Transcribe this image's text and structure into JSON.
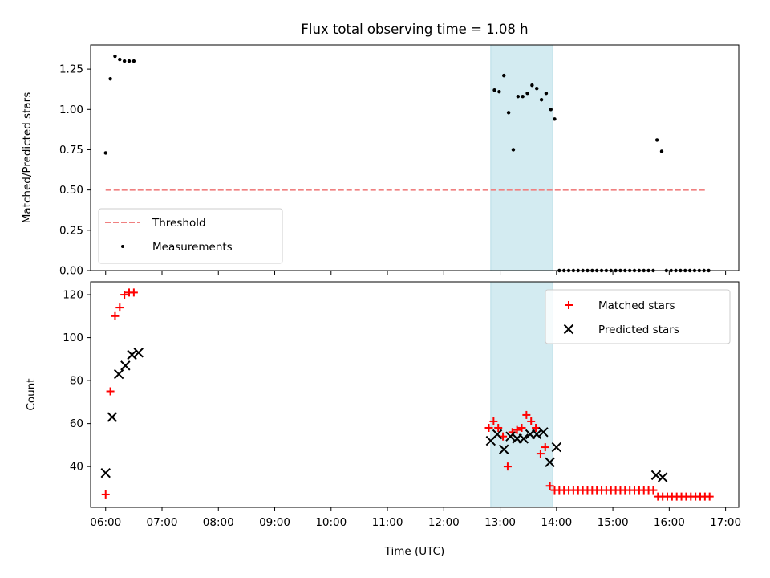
{
  "chart_data": [
    {
      "type": "scatter",
      "title": "Flux total observing time = 1.08 h",
      "ylabel": "Matched/Predicted stars",
      "xlim": [
        "05:44",
        "17:14"
      ],
      "ylim": [
        0,
        1.4
      ],
      "yticks": [
        "0.00",
        "0.25",
        "0.50",
        "0.75",
        "1.00",
        "1.25"
      ],
      "highlight_span": [
        "12:50",
        "13:56"
      ],
      "highlight_color": "#d3ebf1",
      "legend_position": "lower-left",
      "threshold": {
        "name": "Threshold",
        "value": 0.5,
        "x_range": [
          "06:00",
          "16:40"
        ],
        "color": "#f08080"
      },
      "series": [
        {
          "name": "Measurements",
          "color": "#000000",
          "x": [
            "06:00",
            "06:05",
            "06:10",
            "06:15",
            "06:20",
            "06:25",
            "06:30",
            "12:54",
            "12:59",
            "13:04",
            "13:09",
            "13:14",
            "13:19",
            "13:24",
            "13:29",
            "13:34",
            "13:39",
            "13:44",
            "13:49",
            "13:54",
            "13:58",
            "14:03",
            "14:08",
            "14:13",
            "14:18",
            "14:23",
            "14:28",
            "14:33",
            "14:38",
            "14:43",
            "14:48",
            "14:53",
            "14:58",
            "15:03",
            "15:08",
            "15:13",
            "15:18",
            "15:23",
            "15:28",
            "15:33",
            "15:38",
            "15:43",
            "15:47",
            "15:52",
            "15:57",
            "16:02",
            "16:07",
            "16:12",
            "16:17",
            "16:22",
            "16:27",
            "16:32",
            "16:37",
            "16:42"
          ],
          "y": [
            0.73,
            1.19,
            1.33,
            1.31,
            1.3,
            1.3,
            1.3,
            1.12,
            1.11,
            1.21,
            0.98,
            0.75,
            1.08,
            1.08,
            1.1,
            1.15,
            1.13,
            1.06,
            1.1,
            1.0,
            0.94,
            0,
            0,
            0,
            0,
            0,
            0,
            0,
            0,
            0,
            0,
            0,
            0,
            0,
            0,
            0,
            0,
            0,
            0,
            0,
            0,
            0,
            0.81,
            0.74,
            0,
            0,
            0,
            0,
            0,
            0,
            0,
            0,
            0,
            0
          ]
        }
      ]
    },
    {
      "type": "scatter",
      "xlabel": "Time (UTC)",
      "ylabel": "Count",
      "xlim": [
        "05:44",
        "17:14"
      ],
      "ylim": [
        21,
        126
      ],
      "yticks": [
        "40",
        "60",
        "80",
        "100",
        "120"
      ],
      "xticks": [
        "06:00",
        "07:00",
        "08:00",
        "09:00",
        "10:00",
        "11:00",
        "12:00",
        "13:00",
        "14:00",
        "15:00",
        "16:00",
        "17:00"
      ],
      "highlight_span": [
        "12:50",
        "13:56"
      ],
      "highlight_color": "#d3ebf1",
      "legend_position": "top-right",
      "series": [
        {
          "name": "Matched stars",
          "marker": "plus",
          "color": "#ff0000",
          "x": [
            "06:00",
            "06:05",
            "06:10",
            "06:15",
            "06:20",
            "06:25",
            "06:30",
            "12:48",
            "12:53",
            "12:58",
            "13:03",
            "13:08",
            "13:13",
            "13:18",
            "13:23",
            "13:28",
            "13:33",
            "13:38",
            "13:43",
            "13:48",
            "13:53",
            "13:58",
            "14:03",
            "14:08",
            "14:13",
            "14:18",
            "14:23",
            "14:28",
            "14:33",
            "14:38",
            "14:43",
            "14:48",
            "14:53",
            "14:58",
            "15:03",
            "15:08",
            "15:13",
            "15:18",
            "15:23",
            "15:28",
            "15:33",
            "15:38",
            "15:43",
            "15:48",
            "15:53",
            "15:58",
            "16:03",
            "16:08",
            "16:13",
            "16:18",
            "16:23",
            "16:28",
            "16:33",
            "16:38",
            "16:43"
          ],
          "y": [
            27,
            75,
            110,
            114,
            120,
            121,
            121,
            58,
            61,
            58,
            54,
            40,
            56,
            57,
            58,
            64,
            61,
            58,
            46,
            49,
            31,
            29,
            29,
            29,
            29,
            29,
            29,
            29,
            29,
            29,
            29,
            29,
            29,
            29,
            29,
            29,
            29,
            29,
            29,
            29,
            29,
            29,
            29,
            26,
            26,
            26,
            26,
            26,
            26,
            26,
            26,
            26,
            26,
            26,
            26
          ]
        },
        {
          "name": "Predicted stars",
          "marker": "x",
          "color": "#000000",
          "x": [
            "06:00",
            "06:07",
            "06:14",
            "06:21",
            "06:28",
            "06:35",
            "12:50",
            "12:57",
            "13:04",
            "13:11",
            "13:18",
            "13:25",
            "13:32",
            "13:39",
            "13:46",
            "13:53",
            "14:00",
            "15:46",
            "15:53"
          ],
          "y": [
            37,
            63,
            83,
            87,
            92,
            93,
            52,
            55,
            48,
            54,
            53,
            53,
            55,
            55,
            56,
            42,
            49,
            36,
            35
          ]
        }
      ]
    }
  ]
}
